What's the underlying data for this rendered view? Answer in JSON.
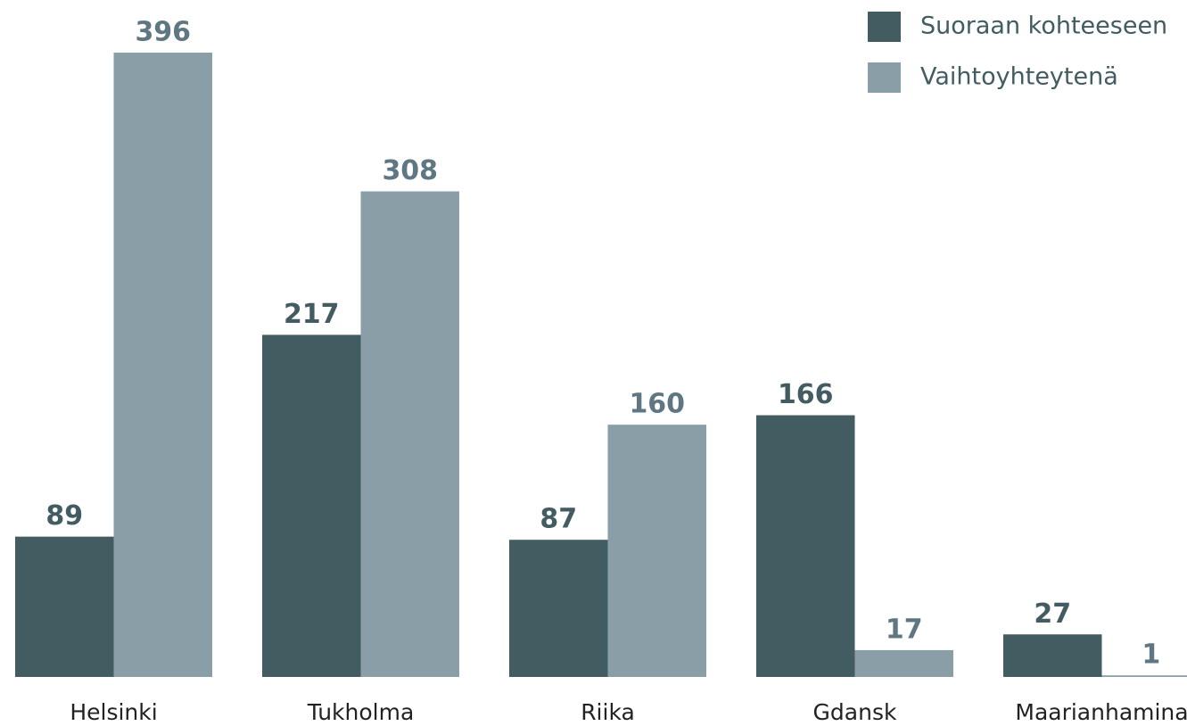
{
  "chart_data": {
    "type": "bar",
    "categories": [
      "Helsinki",
      "Tukholma",
      "Riika",
      "Gdansk",
      "Maarianhamina"
    ],
    "series": [
      {
        "name": "Suoraan kohteeseen",
        "color": "#425c62",
        "label_color": "#425c62",
        "values": [
          89,
          217,
          87,
          166,
          27
        ]
      },
      {
        "name": "Vaihtoyhteytenä",
        "color": "#8a9ea8",
        "label_color": "#5f7782",
        "values": [
          396,
          308,
          160,
          17,
          1
        ]
      }
    ],
    "legend": "top-right"
  }
}
